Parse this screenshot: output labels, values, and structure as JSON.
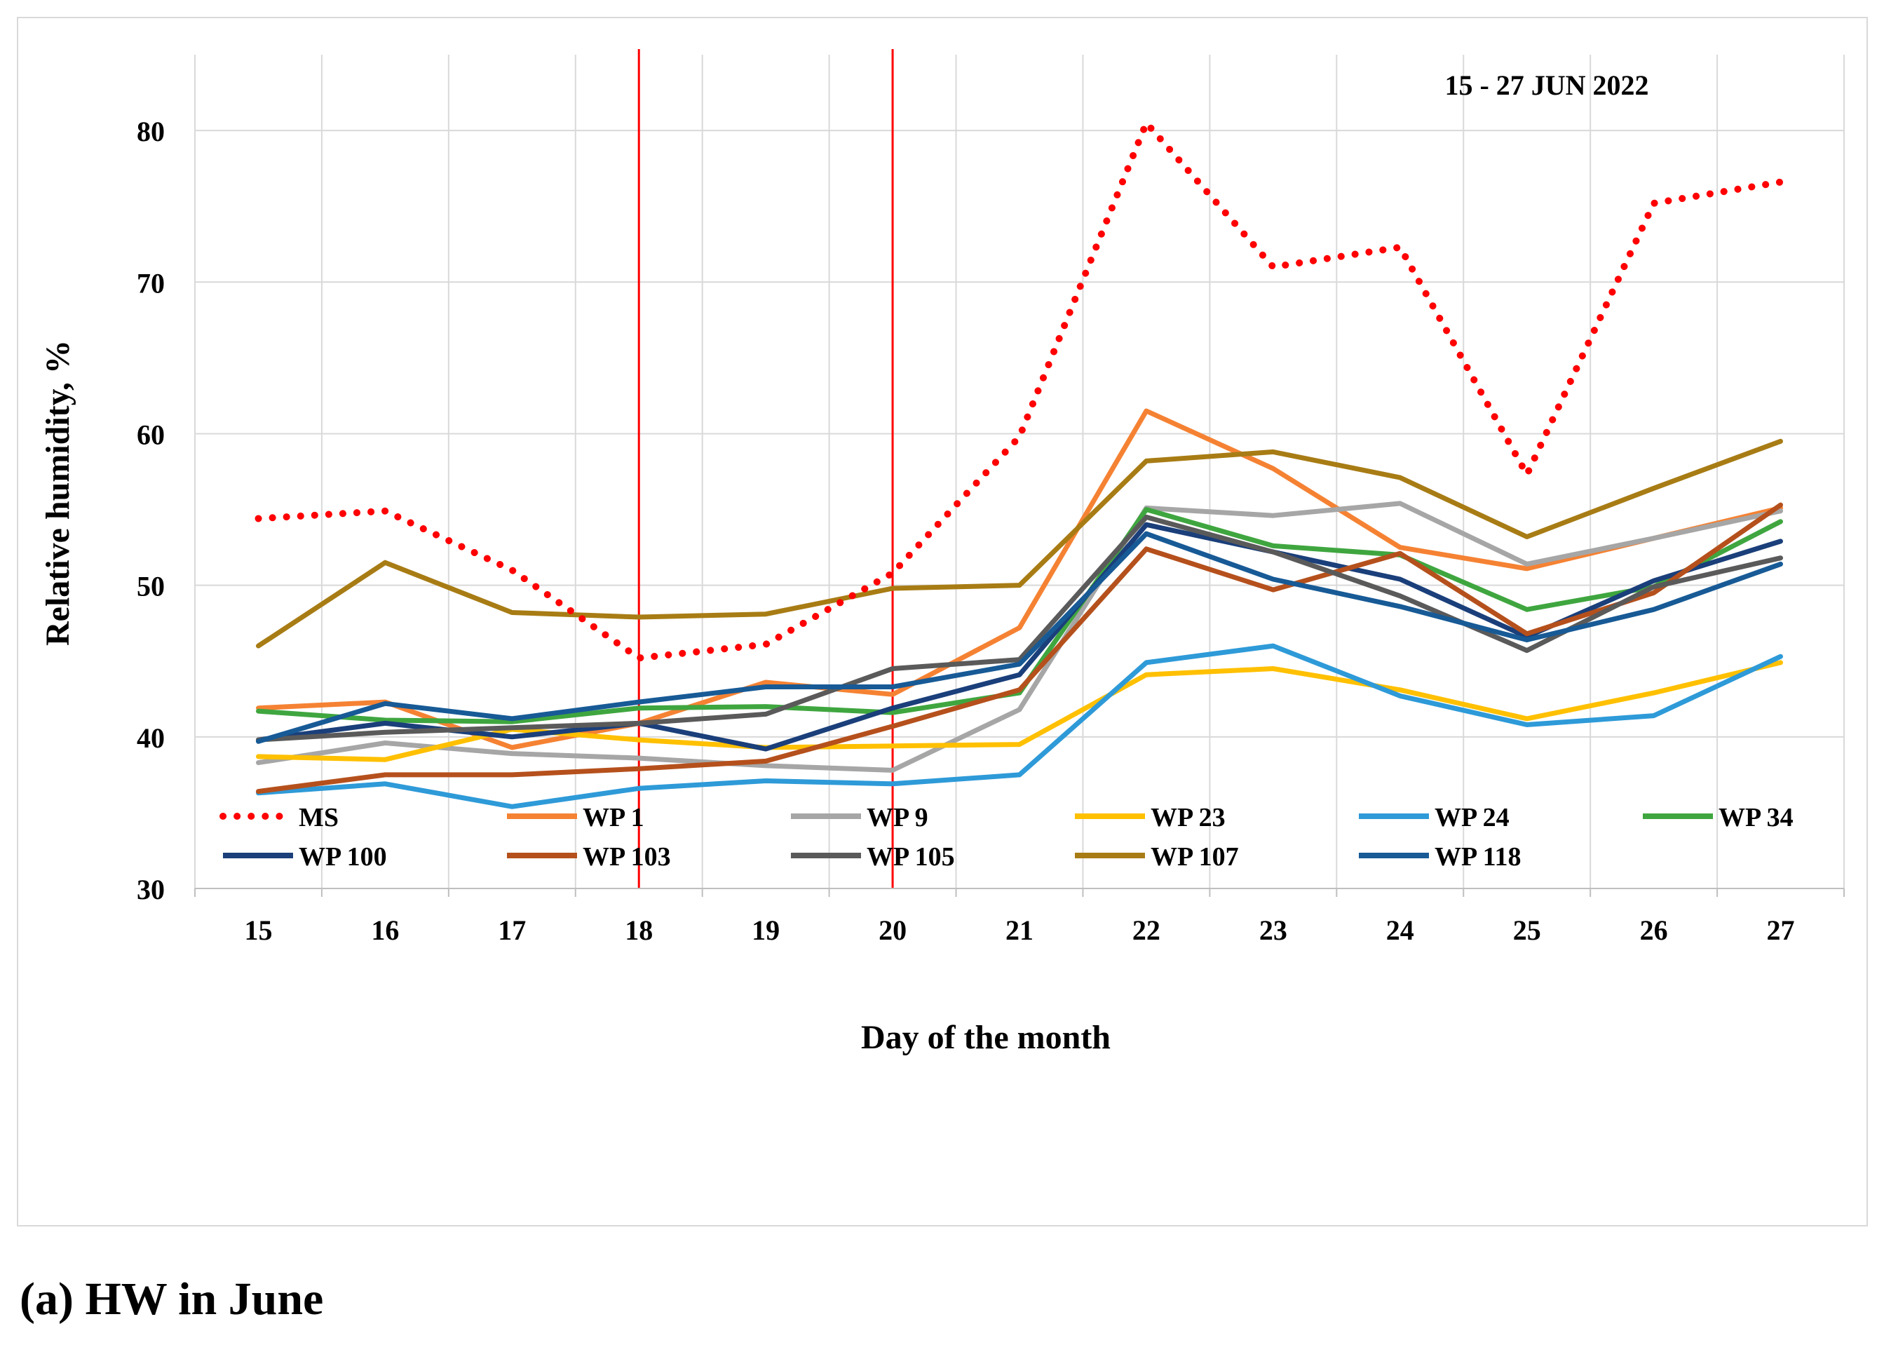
{
  "caption": "(a) HW in June",
  "chart_data": {
    "type": "line",
    "annotation": "15 - 27 JUN 2022",
    "xlabel": "Day of the month",
    "ylabel": "Relative humidity, %",
    "categories": [
      "15",
      "16",
      "17",
      "18",
      "19",
      "20",
      "21",
      "22",
      "23",
      "24",
      "25",
      "26",
      "27"
    ],
    "ylim": [
      30,
      85
    ],
    "yticks": [
      30,
      40,
      50,
      60,
      70,
      80
    ],
    "grid": true,
    "legend_position": "bottom-inside",
    "marker_days": [
      "18",
      "20"
    ],
    "marker_color": "#ff0000",
    "series": [
      {
        "name": "MS",
        "color": "#ff0000",
        "dashed": true,
        "values": [
          54.4,
          54.9,
          51.0,
          45.2,
          46.1,
          50.8,
          59.8,
          80.5,
          71.0,
          72.3,
          57.3,
          75.2,
          76.6
        ]
      },
      {
        "name": "WP 1",
        "color": "#f58233",
        "values": [
          41.9,
          42.3,
          39.3,
          40.9,
          43.6,
          42.8,
          47.2,
          61.5,
          57.7,
          52.5,
          51.1,
          53.1,
          55.1
        ]
      },
      {
        "name": "WP 9",
        "color": "#a6a6a6",
        "values": [
          38.3,
          39.6,
          38.9,
          38.6,
          38.1,
          37.8,
          41.8,
          55.1,
          54.6,
          55.4,
          51.4,
          53.1,
          54.9
        ]
      },
      {
        "name": "WP 23",
        "color": "#ffc000",
        "values": [
          38.7,
          38.5,
          40.5,
          39.8,
          39.3,
          39.4,
          39.5,
          44.1,
          44.5,
          43.1,
          41.2,
          42.9,
          44.9
        ]
      },
      {
        "name": "WP 24",
        "color": "#2e9ad8",
        "values": [
          36.3,
          36.9,
          35.4,
          36.6,
          37.1,
          36.9,
          37.5,
          44.9,
          46.0,
          42.7,
          40.8,
          41.4,
          45.3
        ]
      },
      {
        "name": "WP 34",
        "color": "#3fa63f",
        "values": [
          41.7,
          41.1,
          41.0,
          41.9,
          42.0,
          41.6,
          42.9,
          55.0,
          52.6,
          52.0,
          48.4,
          49.9,
          54.2
        ]
      },
      {
        "name": "WP 100",
        "color": "#1a3f7a",
        "values": [
          39.8,
          40.9,
          40.0,
          40.9,
          39.2,
          41.9,
          44.1,
          54.0,
          52.2,
          50.4,
          46.6,
          50.3,
          52.9
        ]
      },
      {
        "name": "WP 103",
        "color": "#b5501c",
        "values": [
          36.4,
          37.5,
          37.5,
          37.9,
          38.4,
          40.7,
          43.1,
          52.4,
          49.7,
          52.1,
          46.8,
          49.5,
          55.3
        ]
      },
      {
        "name": "WP 105",
        "color": "#5a5a5a",
        "values": [
          39.8,
          40.3,
          40.6,
          40.9,
          41.5,
          44.5,
          45.1,
          54.5,
          52.2,
          49.3,
          45.7,
          49.9,
          51.8
        ]
      },
      {
        "name": "WP 107",
        "color": "#a87c14",
        "values": [
          46.0,
          51.5,
          48.2,
          47.9,
          48.1,
          49.8,
          50.0,
          58.2,
          58.8,
          57.1,
          53.2,
          56.4,
          59.5
        ]
      },
      {
        "name": "WP 118",
        "color": "#175a96",
        "values": [
          39.7,
          42.2,
          41.2,
          42.3,
          43.3,
          43.3,
          44.8,
          53.4,
          50.4,
          48.6,
          46.4,
          48.4,
          51.4
        ]
      }
    ]
  }
}
